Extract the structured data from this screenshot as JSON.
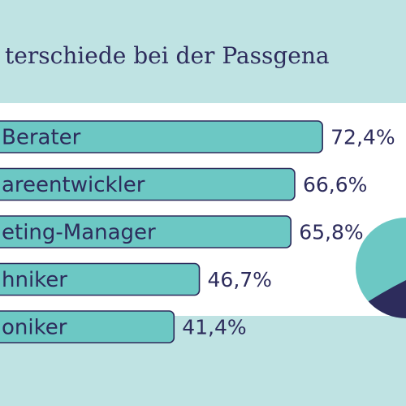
{
  "chart_data": {
    "type": "bar",
    "orientation": "horizontal",
    "title": "...terschiede bei der Passgena...",
    "categories": [
      "...Berater",
      "...areentwickler",
      "...eting-Manager",
      "...hniker",
      "...oniker"
    ],
    "values": [
      72.4,
      66.6,
      65.8,
      46.7,
      41.4
    ],
    "value_labels": [
      "72,4%",
      "66,6%",
      "65,8%",
      "46,7%",
      "41,4%"
    ],
    "unit": "%",
    "grid": false,
    "legend": "none"
  },
  "visible_text": {
    "categories": [
      "Berater",
      "areentwickler",
      "eting-Manager",
      "hniker",
      "oniker"
    ],
    "title": "terschiede bei der Passgena"
  },
  "colors": {
    "background": "#bfe3e3",
    "panel": "#ffffff",
    "bar_fill": "#6cc8c4",
    "text": "#2d2c5c",
    "decor_teal": "#6cc8c4",
    "decor_navy": "#2d2c5c"
  }
}
